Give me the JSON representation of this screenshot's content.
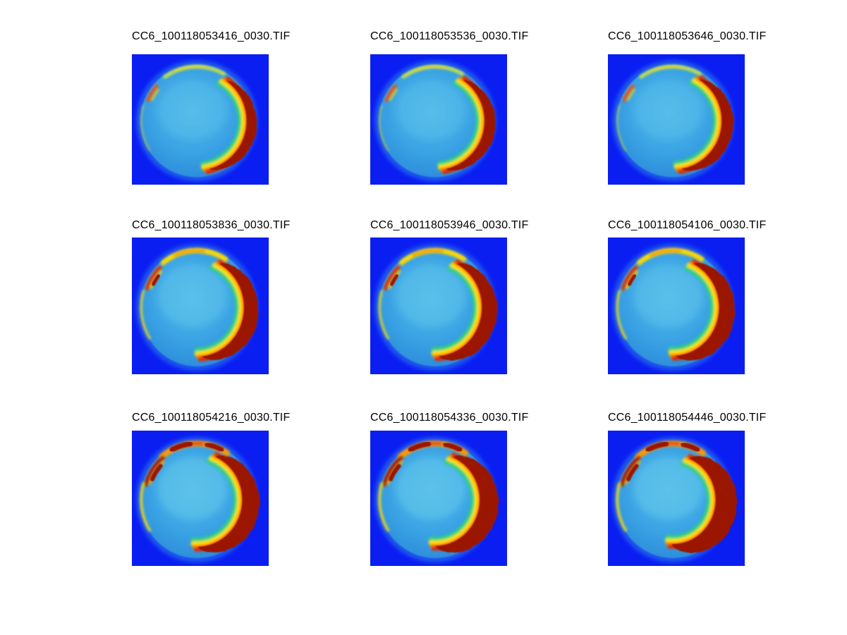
{
  "figure": {
    "kind": "matlab-style image montage",
    "grid": "3x3",
    "background": "#ffffff"
  },
  "colors": {
    "panel_blue": "#0a1ef2",
    "halo_blue": "#3392ea",
    "disk_edge": "#2a86d4",
    "disk_mid": "#3ba4e4",
    "disk_light": "#72d4ee",
    "band_green": "#2ed27e",
    "band_yellow": "#ffdf00",
    "band_orange": "#ff7a00",
    "band_red": "#e02800",
    "maroon": "#9a1206",
    "title_text": "#000000"
  },
  "levels": {
    "1": {
      "top_color": "#cbe040",
      "top_width": 5,
      "top_core": "#ffdf00",
      "core_span": [
        -112,
        -80
      ],
      "top_span": [
        -126,
        -60
      ],
      "light": 0.26,
      "tl_main": "#e85414",
      "tl_main_w": 5,
      "tl_side": "#ffd800",
      "tl_side_w": 2.5,
      "tl_span": [
        -157,
        -139
      ],
      "tl_maroon": null,
      "top_maroon": [],
      "bl_w": 2.5,
      "bl_op": 0.5
    },
    "2": {
      "top_color": "#ffd800",
      "top_width": 7,
      "top_core": "#ff9000",
      "core_span": [
        -114,
        -82
      ],
      "top_span": [
        -128,
        -58
      ],
      "light": 0.34,
      "tl_main": "#d8380c",
      "tl_main_w": 6,
      "tl_side": "#ffd800",
      "tl_side_w": 3,
      "tl_span": [
        -160,
        -134
      ],
      "tl_maroon": {
        "span": [
          -153,
          -142
        ],
        "w": 5
      },
      "top_maroon": [],
      "bl_w": 3.5,
      "bl_op": 0.8
    },
    "3": {
      "top_color": "#ff9800",
      "top_width": 8,
      "top_core": "#e03008",
      "core_span": [
        -116,
        -84
      ],
      "top_span": [
        -130,
        -56
      ],
      "light": 0.42,
      "tl_main": "#b01c06",
      "tl_main_w": 6,
      "tl_side": "#ffb400",
      "tl_side_w": 3,
      "tl_span": [
        -164,
        -130
      ],
      "tl_maroon": {
        "span": [
          -156,
          -138
        ],
        "w": 6
      },
      "top_maroon": [
        [
          -117,
          -97
        ],
        [
          -79,
          -63
        ]
      ],
      "bl_w": 4,
      "bl_op": 0.85
    }
  },
  "panels": [
    {
      "title": "CC6_100118053416_0030.TIF",
      "viz": {
        "level": 1,
        "crescent_width": 15,
        "span": [
          -54,
          76
        ]
      }
    },
    {
      "title": "CC6_100118053536_0030.TIF",
      "viz": {
        "level": 1,
        "crescent_width": 16,
        "span": [
          -56,
          78
        ]
      }
    },
    {
      "title": "CC6_100118053646_0030.TIF",
      "viz": {
        "level": 1,
        "crescent_width": 17,
        "span": [
          -58,
          80
        ]
      }
    },
    {
      "title": "CC6_100118053836_0030.TIF",
      "viz": {
        "level": 2,
        "crescent_width": 21,
        "span": [
          -62,
          84
        ]
      }
    },
    {
      "title": "CC6_100118053946_0030.TIF",
      "viz": {
        "level": 2,
        "crescent_width": 22,
        "span": [
          -63,
          86
        ]
      }
    },
    {
      "title": "CC6_100118054106_0030.TIF",
      "viz": {
        "level": 2,
        "crescent_width": 23,
        "span": [
          -64,
          87
        ]
      }
    },
    {
      "title": "CC6_100118054216_0030.TIF",
      "viz": {
        "level": 3,
        "crescent_width": 25,
        "span": [
          -66,
          89
        ]
      }
    },
    {
      "title": "CC6_100118054336_0030.TIF",
      "viz": {
        "level": 3,
        "crescent_width": 27,
        "span": [
          -67,
          90
        ]
      }
    },
    {
      "title": "CC6_100118054446_0030.TIF",
      "viz": {
        "level": 3,
        "crescent_width": 31,
        "span": [
          -68,
          92
        ]
      }
    }
  ],
  "chart_data": {
    "type": "heatmap",
    "layout": "3x3 montage of false-color image frames, no axes ticks or colorbar shown",
    "colormap": "jet",
    "panel_titles": [
      "CC6_100118053416_0030.TIF",
      "CC6_100118053536_0030.TIF",
      "CC6_100118053646_0030.TIF",
      "CC6_100118053836_0030.TIF",
      "CC6_100118053946_0030.TIF",
      "CC6_100118054106_0030.TIF",
      "CC6_100118054216_0030.TIF",
      "CC6_100118054336_0030.TIF",
      "CC6_100118054446_0030.TIF"
    ],
    "notes": "Each panel shows the same circular specimen on a uniform blue background; intensity saturates (dark-red crescent on the right side, yellow/orange rim at top and top-left) and the saturated region grows from frame to frame."
  }
}
